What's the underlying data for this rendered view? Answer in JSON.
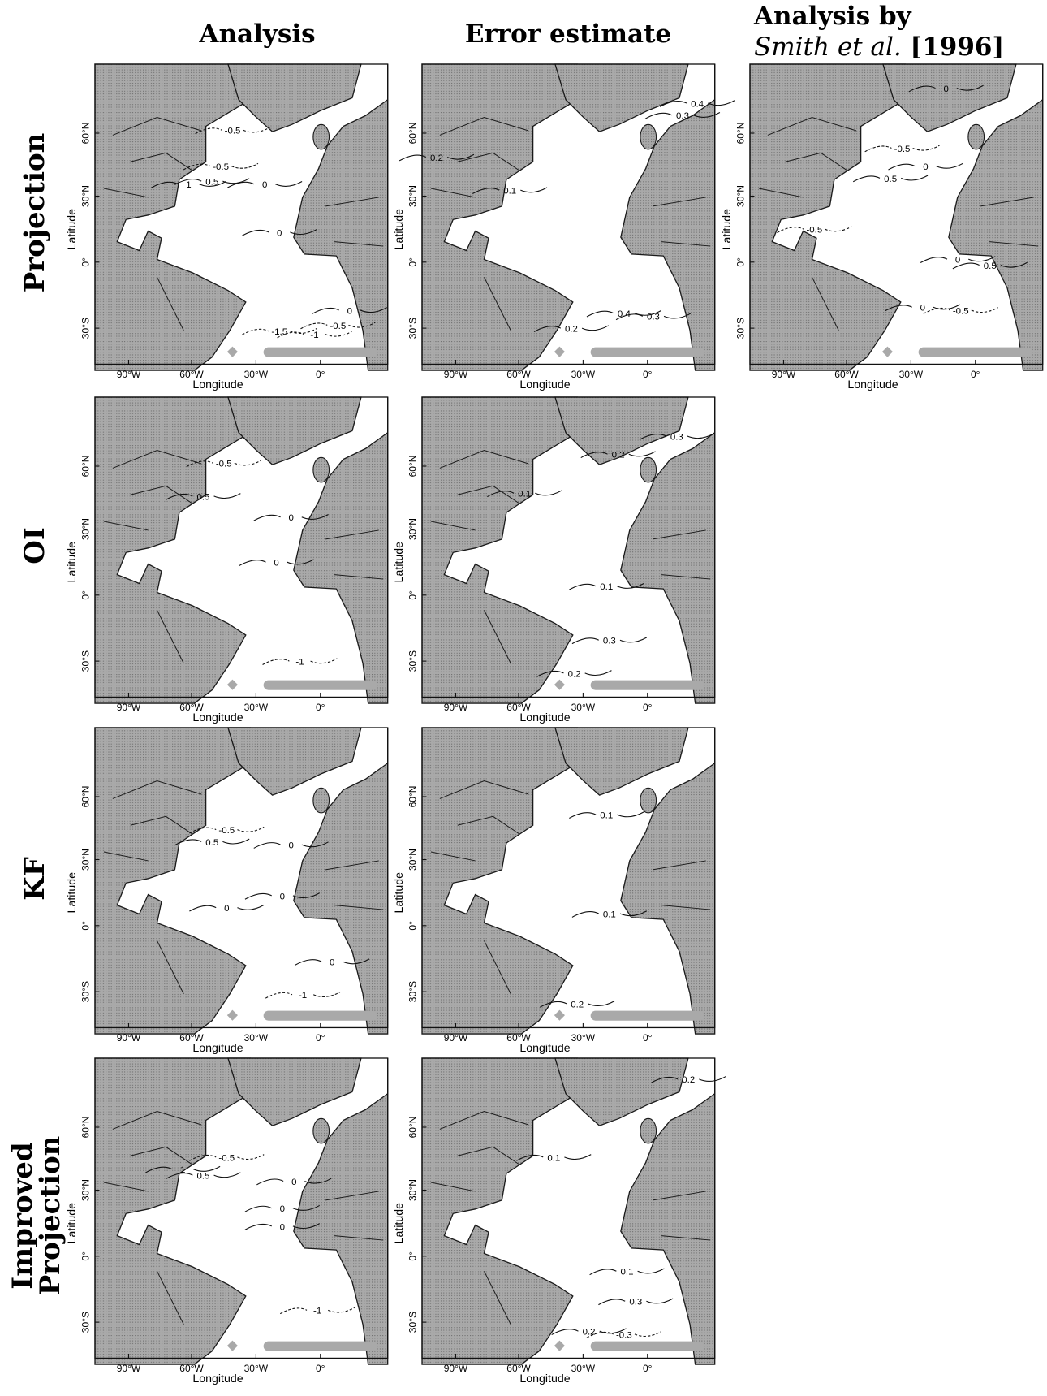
{
  "columns": [
    "Analysis",
    "Error estimate"
  ],
  "column_3": {
    "line1": "Analysis by",
    "authors": "Smith et al.",
    "year": "[1996]"
  },
  "rows": [
    {
      "lines": [
        "Projection"
      ],
      "panels": [
        {
          "contour_labels": [
            "-0.5",
            "-0.5",
            "1",
            "0.5",
            "0",
            "0",
            "-1.5",
            "-1",
            "-0.5",
            "0"
          ]
        },
        {
          "contour_labels": [
            "0.4",
            "0.3",
            "0.2",
            "0.1",
            "0.4",
            "0.3",
            "0.2"
          ]
        },
        {
          "contour_labels": [
            "0",
            "-0.5",
            "0",
            "0.5",
            "-0.5",
            "0",
            "0.5",
            "0",
            "-0.5"
          ]
        }
      ]
    },
    {
      "lines": [
        "OI"
      ],
      "panels": [
        {
          "contour_labels": [
            "-0.5",
            "0.5",
            "0",
            "0",
            "-1"
          ]
        },
        {
          "contour_labels": [
            "0.3",
            "0.2",
            "0.1",
            "0.1",
            "0.3",
            "0.2"
          ]
        }
      ]
    },
    {
      "lines": [
        "KF"
      ],
      "panels": [
        {
          "contour_labels": [
            "-0.5",
            "0.5",
            "0",
            "0",
            "0",
            "0",
            "-1"
          ]
        },
        {
          "contour_labels": [
            "0.1",
            "0.1",
            "0.2"
          ]
        }
      ]
    },
    {
      "lines": [
        "Improved",
        "Projection"
      ],
      "panels": [
        {
          "contour_labels": [
            "-0.5",
            "1",
            "0.5",
            "0",
            "0",
            "0",
            "-1"
          ]
        },
        {
          "contour_labels": [
            "0.2",
            "0.1",
            "0.1",
            "0.3",
            "0.2",
            "-0.3"
          ]
        }
      ]
    }
  ],
  "axes": {
    "latitude": "Latitude",
    "longitude": "Longitude",
    "lat_ticks": [
      "60°N",
      "30°N",
      "0°",
      "30°S"
    ],
    "lon_ticks": [
      "90°W",
      "60°W",
      "30°W",
      "0°"
    ]
  }
}
